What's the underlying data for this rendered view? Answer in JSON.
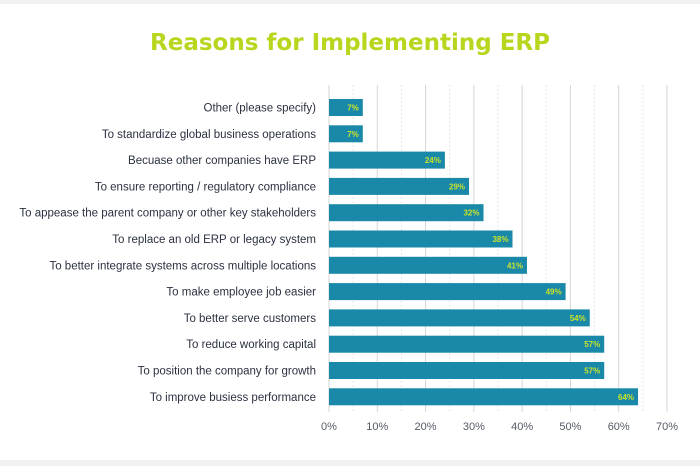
{
  "chart_data": {
    "type": "bar",
    "orientation": "horizontal",
    "title": "Reasons for Implementing ERP",
    "xlabel": "",
    "ylabel": "",
    "categories": [
      "Other (please specify)",
      "To standardize global business operations",
      "Becuase other companies have ERP",
      "To ensure reporting / regulatory compliance",
      "To appease the parent company or other key stakeholders",
      "To replace an old ERP or legacy system",
      "To better integrate systems across multiple locations",
      "To make employee job easier",
      "To better serve customers",
      "To reduce working capital",
      "To position the company for growth",
      "To improve busiess performance"
    ],
    "values": [
      7,
      7,
      24,
      29,
      32,
      38,
      41,
      49,
      54,
      57,
      57,
      64
    ],
    "value_labels": [
      "7%",
      "7%",
      "24%",
      "29%",
      "32%",
      "38%",
      "41%",
      "49%",
      "54%",
      "57%",
      "57%",
      "64%"
    ],
    "xlim": [
      0,
      70
    ],
    "x_ticks": [
      "0%",
      "10%",
      "20%",
      "30%",
      "40%",
      "50%",
      "60%",
      "70%"
    ],
    "grid": true,
    "colors": {
      "bar": "#1a88a8",
      "title": "#b9d61e",
      "value_label": "#c8e32a",
      "grid": "#d6d6d6"
    }
  }
}
